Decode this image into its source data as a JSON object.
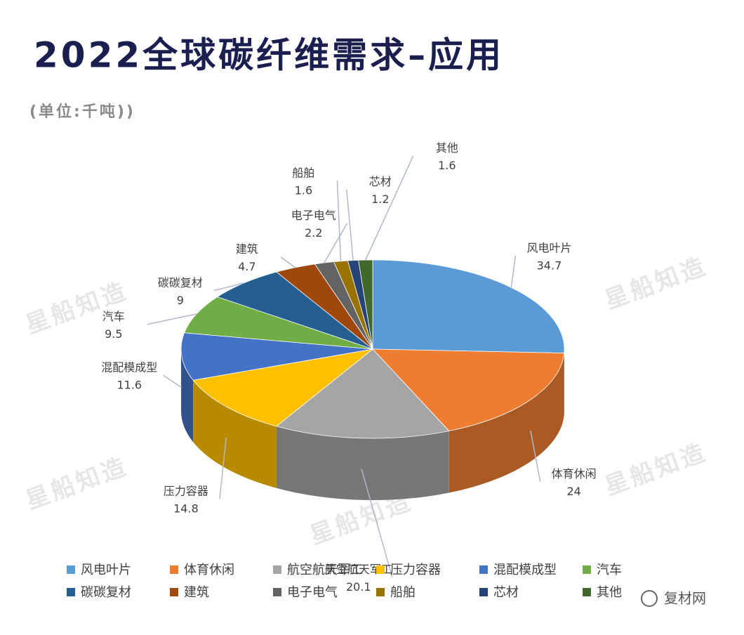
{
  "chart_data": {
    "type": "pie3d",
    "title": "2022全球碳纤维需求–应用",
    "subtitle": "(单位:千吨))",
    "categories": [
      "风电叶片",
      "体育休闲",
      "航空航天军工",
      "压力容器",
      "混配模成型",
      "汽车",
      "碳碳复材",
      "建筑",
      "电子电气",
      "船舶",
      "芯材",
      "其他"
    ],
    "values": [
      34.7,
      24,
      20.1,
      14.8,
      11.6,
      9.5,
      9,
      4.7,
      2.2,
      1.6,
      1.2,
      1.6
    ],
    "colors": [
      "#5b9bd5",
      "#ed7d31",
      "#a5a5a5",
      "#ffc000",
      "#4472c4",
      "#70ad47",
      "#255e91",
      "#9e480e",
      "#636363",
      "#997300",
      "#264478",
      "#43682b"
    ],
    "legend": "bottom"
  },
  "watermark": "星船知造",
  "brand": "复材网"
}
